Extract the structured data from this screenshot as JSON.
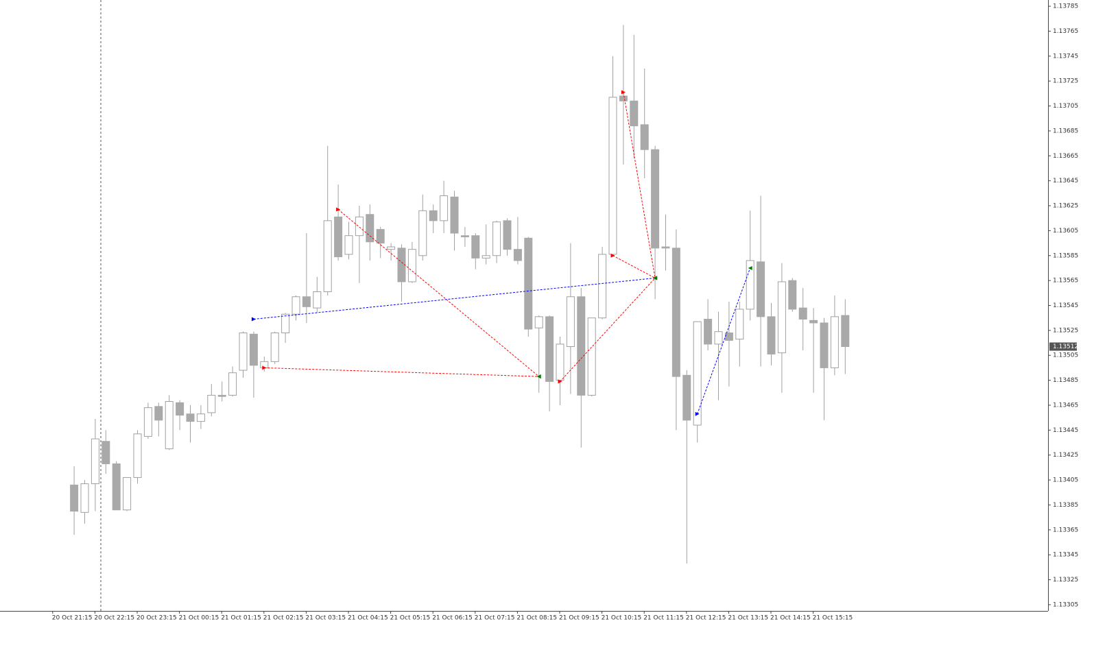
{
  "chart_data": {
    "type": "candlestick",
    "categories": [
      "20 Oct 21:15",
      null,
      null,
      null,
      "20 Oct 22:15",
      null,
      null,
      null,
      "20 Oct 23:15",
      null,
      null,
      null,
      "21 Oct 00:15",
      null,
      null,
      null,
      "21 Oct 01:15",
      null,
      null,
      null,
      "21 Oct 02:15",
      null,
      null,
      null,
      "21 Oct 03:15",
      null,
      null,
      null,
      "21 Oct 04:15",
      null,
      null,
      null,
      "21 Oct 05:15",
      null,
      null,
      null,
      "21 Oct 06:15",
      null,
      null,
      null,
      "21 Oct 07:15",
      null,
      null,
      null,
      "21 Oct 08:15",
      null,
      null,
      null,
      "21 Oct 09:15",
      null,
      null,
      null,
      "21 Oct 10:15",
      null,
      null,
      null,
      "21 Oct 11:15",
      null,
      null,
      null,
      "21 Oct 12:15",
      null,
      null,
      null,
      "21 Oct 13:15",
      null,
      null,
      null,
      "21 Oct 14:15",
      null,
      null,
      null,
      "21 Oct 15:15",
      null,
      null,
      null
    ],
    "open": [
      null,
      null,
      1.13401,
      1.13379,
      1.13402,
      1.13436,
      1.13418,
      1.13381,
      1.13407,
      1.1344,
      1.13464,
      1.1343,
      1.13467,
      1.13458,
      1.13452,
      1.13459,
      1.13473,
      1.13473,
      1.13493,
      1.13522,
      1.13495,
      1.135,
      1.13523,
      1.13538,
      1.13552,
      1.13543,
      1.13556,
      1.13616,
      1.13586,
      1.13601,
      1.13618,
      1.13606,
      1.1359,
      1.13591,
      1.13564,
      1.13585,
      1.13621,
      1.13613,
      1.13632,
      1.13601,
      1.13601,
      1.13583,
      1.13585,
      1.13613,
      1.1359,
      1.13599,
      1.13527,
      1.13536,
      1.13485,
      1.13512,
      1.13552,
      1.13473,
      1.13535,
      1.13586,
      1.13713,
      1.13709,
      1.1369,
      1.1367,
      1.13592,
      1.13591,
      1.13489,
      1.13449,
      1.13534,
      1.13514,
      1.13523,
      1.13518,
      1.13542,
      1.1358,
      1.13536,
      1.13507,
      1.13565,
      1.13543,
      1.13533,
      1.13531,
      1.13495,
      1.13537
    ],
    "high": [
      null,
      null,
      1.13416,
      1.13405,
      1.13454,
      1.13445,
      1.1342,
      1.13407,
      1.13445,
      1.13467,
      1.13467,
      1.13473,
      1.13469,
      1.13465,
      1.13465,
      1.13482,
      1.13484,
      1.13496,
      1.13524,
      1.13524,
      1.13504,
      1.13524,
      1.13539,
      1.13553,
      1.13603,
      1.13568,
      1.13673,
      1.13642,
      1.13612,
      1.13625,
      1.13626,
      1.13608,
      1.13595,
      1.13594,
      1.13596,
      1.13634,
      1.13626,
      1.13645,
      1.13637,
      1.13608,
      1.13603,
      1.1361,
      1.13613,
      1.13615,
      1.13616,
      1.136,
      1.13537,
      1.13537,
      1.1352,
      1.13595,
      1.13559,
      1.13535,
      1.13592,
      1.13745,
      1.1377,
      1.13762,
      1.13735,
      1.13673,
      1.13618,
      1.13606,
      1.13493,
      1.13532,
      1.1355,
      1.1354,
      1.13548,
      1.13548,
      1.13621,
      1.13633,
      1.13547,
      1.13579,
      1.13567,
      1.13559,
      1.13543,
      1.13535,
      1.13553,
      1.1355
    ],
    "low": [
      null,
      null,
      1.13361,
      1.1337,
      1.1338,
      1.1341,
      1.13381,
      1.1338,
      1.13402,
      1.13438,
      1.1344,
      1.13429,
      1.13445,
      1.13435,
      1.13446,
      1.13456,
      1.13468,
      1.13472,
      1.13487,
      1.13471,
      1.13492,
      1.13498,
      1.13515,
      1.13533,
      1.13531,
      1.13539,
      1.13553,
      1.13581,
      1.13582,
      1.13563,
      1.13581,
      1.13583,
      1.13581,
      1.13548,
      1.13563,
      1.13581,
      1.13603,
      1.13603,
      1.13589,
      1.13592,
      1.13574,
      1.13578,
      1.13579,
      1.13585,
      1.13578,
      1.1352,
      1.13475,
      1.1346,
      1.13465,
      1.13474,
      1.13431,
      1.13472,
      1.13534,
      1.13584,
      1.13658,
      1.13663,
      1.13647,
      1.1355,
      1.13573,
      1.13445,
      1.13338,
      1.13435,
      1.13509,
      1.13469,
      1.1348,
      1.13496,
      1.13533,
      1.13496,
      1.13497,
      1.13475,
      1.1354,
      1.13509,
      1.13475,
      1.13453,
      1.13489,
      1.1349
    ],
    "close": [
      null,
      null,
      1.1338,
      1.13402,
      1.13438,
      1.13418,
      1.13381,
      1.13407,
      1.13442,
      1.13463,
      1.13453,
      1.13468,
      1.13457,
      1.13452,
      1.13458,
      1.13473,
      1.13472,
      1.13491,
      1.13523,
      1.13497,
      1.135,
      1.13523,
      1.13538,
      1.13552,
      1.13544,
      1.13556,
      1.13613,
      1.13584,
      1.13601,
      1.13616,
      1.13596,
      1.13595,
      1.13592,
      1.13564,
      1.1359,
      1.13621,
      1.13613,
      1.13633,
      1.13603,
      1.136,
      1.13583,
      1.13585,
      1.13612,
      1.1359,
      1.13581,
      1.13526,
      1.13536,
      1.13484,
      1.13514,
      1.13552,
      1.13473,
      1.13535,
      1.13586,
      1.13712,
      1.13709,
      1.13689,
      1.1367,
      1.13591,
      1.13591,
      1.13488,
      1.13453,
      1.13532,
      1.13514,
      1.13524,
      1.13517,
      1.13542,
      1.13581,
      1.13536,
      1.13506,
      1.13564,
      1.13542,
      1.13534,
      1.13531,
      1.13495,
      1.13536,
      1.13512
    ],
    "ylim": [
      1.133,
      1.1379
    ],
    "yticks": [
      1.13785,
      1.13765,
      1.13745,
      1.13725,
      1.13705,
      1.13685,
      1.13665,
      1.13645,
      1.13625,
      1.13605,
      1.13585,
      1.13565,
      1.13545,
      1.13525,
      1.13505,
      1.13485,
      1.13465,
      1.13445,
      1.13425,
      1.13405,
      1.13385,
      1.13365,
      1.13345,
      1.13325,
      1.13305
    ],
    "current_price": 1.13512,
    "up_color": "#ffffff",
    "down_color": "#a9a9a9",
    "exit_color": "#008000",
    "trades": [
      {
        "color": "#ff0000",
        "x": [
          27,
          46
        ],
        "y": [
          1.13622,
          1.13488
        ]
      },
      {
        "color": "#ff0000",
        "x": [
          20,
          46
        ],
        "y": [
          1.13495,
          1.13488
        ]
      },
      {
        "color": "#ff0000",
        "x": [
          48,
          57
        ],
        "y": [
          1.13484,
          1.13567
        ]
      },
      {
        "color": "#ff0000",
        "x": [
          53,
          57
        ],
        "y": [
          1.13585,
          1.13567
        ]
      },
      {
        "color": "#ff0000",
        "x": [
          54,
          57
        ],
        "y": [
          1.13716,
          1.13567
        ]
      },
      {
        "color": "#0000ff",
        "x": [
          19,
          57
        ],
        "y": [
          1.13534,
          1.13567
        ]
      },
      {
        "color": "#0000ff",
        "x": [
          61,
          66
        ],
        "y": [
          1.13458,
          1.13575
        ]
      }
    ]
  }
}
